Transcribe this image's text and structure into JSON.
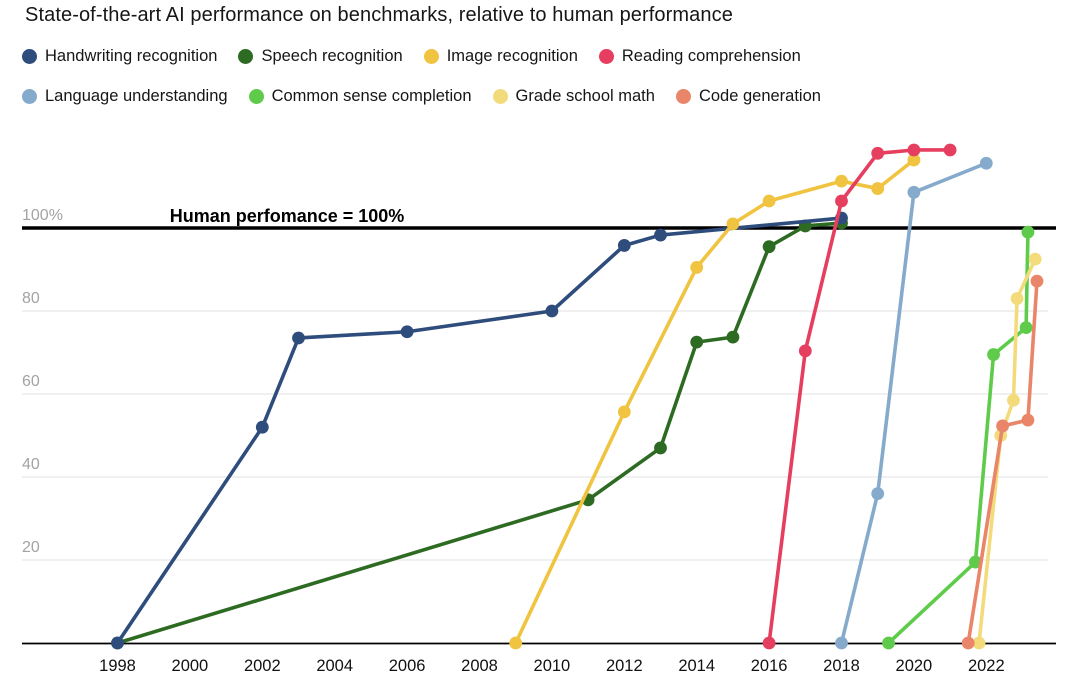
{
  "page": {
    "title": "State-of-the-art AI performance on benchmarks, relative to human performance"
  },
  "chart_data": {
    "type": "line",
    "title": "State-of-the-art AI performance on benchmarks, relative to human performance",
    "annotation": "Human perfomance = 100%",
    "human_baseline_value": 100,
    "x_axis": {
      "tick_labels": [
        "1998",
        "2000",
        "2002",
        "2004",
        "2006",
        "2008",
        "2010",
        "2012",
        "2014",
        "2016",
        "2018",
        "2020",
        "2022"
      ],
      "range": [
        1995.4,
        2023.9
      ],
      "grid": false
    },
    "y_axis": {
      "ticks": [
        {
          "label": "100%",
          "value": 100
        },
        {
          "label": "80",
          "value": 80
        },
        {
          "label": "60",
          "value": 60
        },
        {
          "label": "40",
          "value": 40
        },
        {
          "label": "20",
          "value": 20
        }
      ],
      "range": [
        0,
        121
      ],
      "grid": true
    },
    "legend_position": "top",
    "legend_rows": [
      [
        0,
        1,
        2,
        3
      ],
      [
        4,
        5,
        6,
        7
      ]
    ],
    "series": [
      {
        "name": "Handwriting recognition",
        "color": "#2e4c7c",
        "points": [
          [
            1998,
            0
          ],
          [
            2002,
            52
          ],
          [
            2003,
            73.5
          ],
          [
            2006,
            75
          ],
          [
            2010,
            80
          ],
          [
            2012,
            95.8
          ],
          [
            2013,
            98.3
          ],
          [
            2018,
            102.4
          ]
        ]
      },
      {
        "name": "Speech recognition",
        "color": "#2d6b22",
        "points": [
          [
            1998,
            0
          ],
          [
            2011,
            34.5
          ],
          [
            2013,
            47
          ],
          [
            2014,
            72.5
          ],
          [
            2015,
            73.7
          ],
          [
            2016,
            95.5
          ],
          [
            2017,
            100.5
          ],
          [
            2018,
            101.2
          ]
        ]
      },
      {
        "name": "Image recognition",
        "color": "#f0c440",
        "points": [
          [
            2009,
            0
          ],
          [
            2012,
            55.7
          ],
          [
            2014,
            90.5
          ],
          [
            2015,
            101
          ],
          [
            2016,
            106.5
          ],
          [
            2018,
            111.3
          ],
          [
            2019,
            109.5
          ],
          [
            2020,
            116.4
          ]
        ]
      },
      {
        "name": "Reading comprehension",
        "color": "#e63e5e",
        "points": [
          [
            2016,
            0
          ],
          [
            2017,
            70.4
          ],
          [
            2018,
            106.5
          ],
          [
            2019,
            118
          ],
          [
            2020,
            118.8
          ],
          [
            2021,
            118.8
          ]
        ]
      },
      {
        "name": "Language understanding",
        "color": "#85aacb",
        "points": [
          [
            2018,
            0
          ],
          [
            2019,
            36
          ],
          [
            2020,
            108.6
          ],
          [
            2022,
            115.6
          ]
        ]
      },
      {
        "name": "Common sense completion",
        "color": "#5ecc4a",
        "points": [
          [
            2019.3,
            0
          ],
          [
            2021.7,
            19.5
          ],
          [
            2022.2,
            69.5
          ],
          [
            2023.1,
            76
          ],
          [
            2023.15,
            99
          ]
        ]
      },
      {
        "name": "Grade school math",
        "color": "#f3db7c",
        "points": [
          [
            2021.8,
            0
          ],
          [
            2022.4,
            50
          ],
          [
            2022.75,
            58.5
          ],
          [
            2022.85,
            83
          ],
          [
            2023.35,
            92.5
          ]
        ]
      },
      {
        "name": "Code generation",
        "color": "#e98568",
        "points": [
          [
            2021.5,
            0
          ],
          [
            2022.45,
            52.3
          ],
          [
            2023.15,
            53.7
          ],
          [
            2023.4,
            87.2
          ]
        ]
      }
    ],
    "colors": {
      "gridline": "#e7e7e7",
      "y_tick_label": "#a3a3a3",
      "x_tick_label": "#111111",
      "baseline_line": "#000000",
      "axis_line": "#000000"
    }
  }
}
